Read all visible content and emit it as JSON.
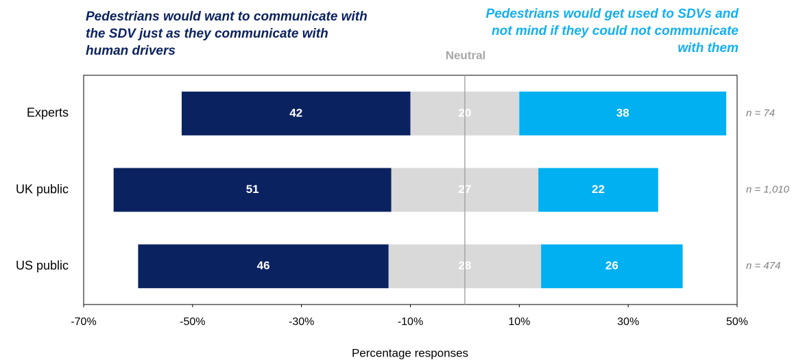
{
  "chart_data": {
    "type": "diverging_bar",
    "x_label": "Percentage responses",
    "categories": [
      "Experts",
      "UK public",
      "US public"
    ],
    "series": [
      {
        "name": "Pedestrians would want to communicate with the SDV just as they communicate with human drivers",
        "color": "#0b2260",
        "values": [
          42,
          51,
          46
        ]
      },
      {
        "name": "Neutral",
        "color": "#d9d9d9",
        "values": [
          20,
          27,
          28
        ]
      },
      {
        "name": "Pedestrians would get used to SDVs and not mind if they could not communicate with them",
        "color": "#00b0f0",
        "values": [
          38,
          22,
          26
        ]
      }
    ],
    "n_labels": [
      "n = 74",
      "n = 1,010",
      "n = 474"
    ],
    "xlim": [
      -70,
      50
    ],
    "xticks": [
      {
        "value": -70,
        "label": "-70%"
      },
      {
        "value": -50,
        "label": "-50%"
      },
      {
        "value": -30,
        "label": "-30%"
      },
      {
        "value": -10,
        "label": "-10%"
      },
      {
        "value": 10,
        "label": "10%"
      },
      {
        "value": 30,
        "label": "30%"
      },
      {
        "value": 50,
        "label": "50%"
      }
    ]
  }
}
